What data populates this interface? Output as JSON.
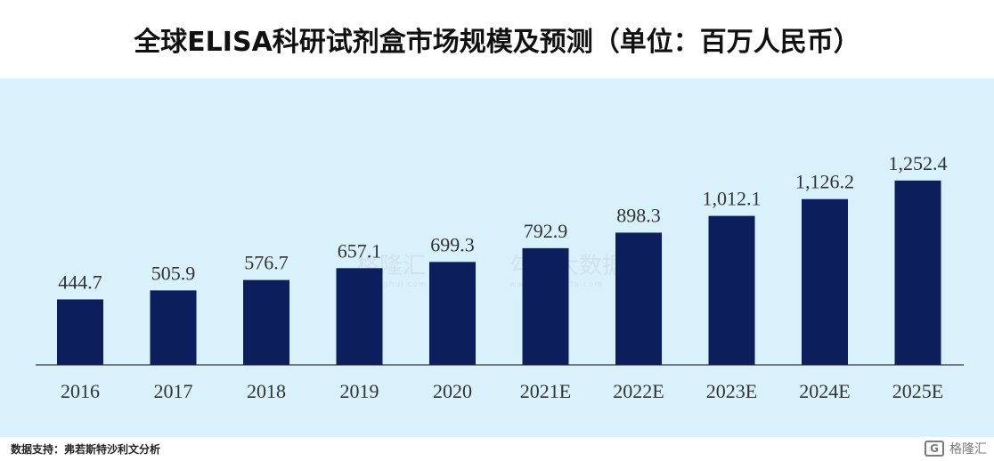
{
  "page": {
    "title": "全球ELISA科研试剂盒市场规模及预测（单位：百万人民币）",
    "source": "数据支持：弗若斯特沙利文分析",
    "logo_text": "格隆汇",
    "watermark_left": "格隆汇",
    "watermark_left_sub": "gelonghui.com",
    "watermark_right": "勾股大数据",
    "watermark_right_sub": "www.gogudata.com",
    "colors": {
      "bar": "#0c1f5c",
      "panel_bg": "#d9f1fb",
      "axis": "#555555"
    }
  },
  "chart_data": {
    "type": "bar",
    "title": "全球ELISA科研试剂盒市场规模及预测（单位：百万人民币）",
    "categories": [
      "2016",
      "2017",
      "2018",
      "2019",
      "2020",
      "2021E",
      "2022E",
      "2023E",
      "2024E",
      "2025E"
    ],
    "values": [
      444.7,
      505.9,
      576.7,
      657.1,
      699.3,
      792.9,
      898.3,
      1012.1,
      1126.2,
      1252.4
    ],
    "value_labels": [
      "444.7",
      "505.9",
      "576.7",
      "657.1",
      "699.3",
      "792.9",
      "898.3",
      "1,012.1",
      "1,126.2",
      "1,252.4"
    ],
    "xlabel": "",
    "ylabel": "",
    "ylim": [
      0,
      1500
    ],
    "grid": false,
    "legend": "none"
  }
}
